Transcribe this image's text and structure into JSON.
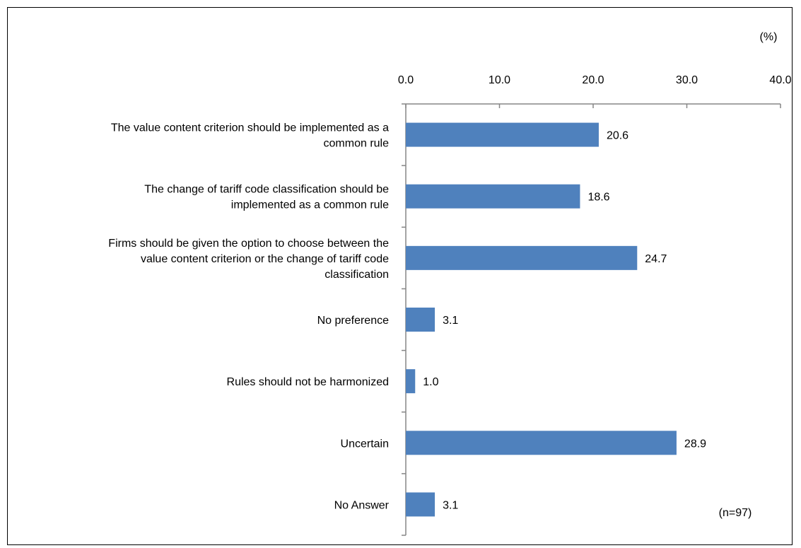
{
  "chart_data": {
    "type": "bar",
    "orientation": "horizontal",
    "unit_label": "(%)",
    "note": "(n=97)",
    "xlim": [
      0,
      40
    ],
    "ticks": [
      0,
      10,
      20,
      30,
      40
    ],
    "tick_labels": [
      "0.0",
      "10.0",
      "20.0",
      "30.0",
      "40.0"
    ],
    "axis_position": "top",
    "grid": false,
    "bar_color": "#4F81BD",
    "categories": [
      "The value content criterion should be implemented as a common rule",
      "The change of tariff code classification should be implemented as a common rule",
      "Firms should be given the option to choose between the value content criterion or the change of tariff code classification",
      "No preference",
      "Rules should not be harmonized",
      "Uncertain",
      "No Answer"
    ],
    "category_lines": [
      [
        "The value content criterion should be implemented as a",
        "common rule"
      ],
      [
        "The change of tariff code classification should be",
        "implemented as a common rule"
      ],
      [
        "Firms should be given the option to choose between the",
        "value content criterion or the change of tariff code",
        "classification"
      ],
      [
        "No preference"
      ],
      [
        "Rules should not be harmonized"
      ],
      [
        "Uncertain"
      ],
      [
        "No Answer"
      ]
    ],
    "values": [
      20.6,
      18.6,
      24.7,
      3.1,
      1.0,
      28.9,
      3.1
    ],
    "data_labels": [
      "20.6",
      "18.6",
      "24.7",
      "3.1",
      "1.0",
      "28.9",
      "3.1"
    ]
  }
}
